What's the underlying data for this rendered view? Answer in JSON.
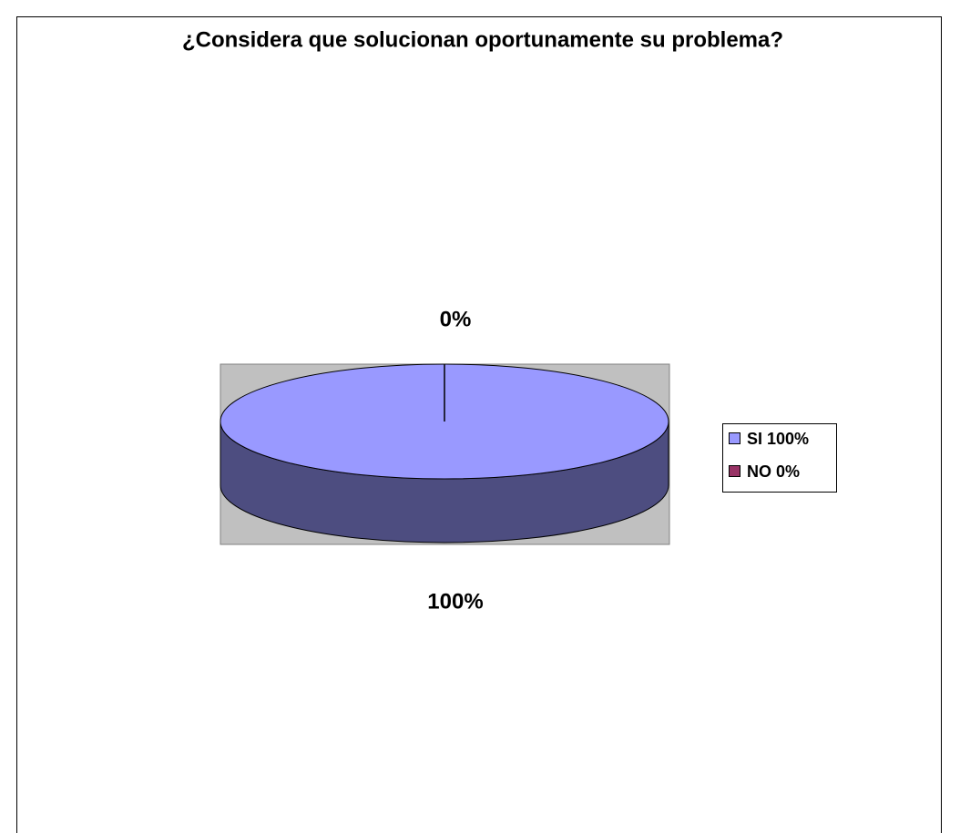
{
  "chart_data": {
    "type": "pie",
    "title": "¿Considera que solucionan oportunamente su problema?",
    "categories": [
      "SI 100%",
      "NO 0%"
    ],
    "values": [
      100,
      0
    ],
    "value_labels": [
      "100%",
      "0%"
    ],
    "colors": [
      "#9999ff",
      "#993366"
    ],
    "legend": "right",
    "three_d": true
  }
}
